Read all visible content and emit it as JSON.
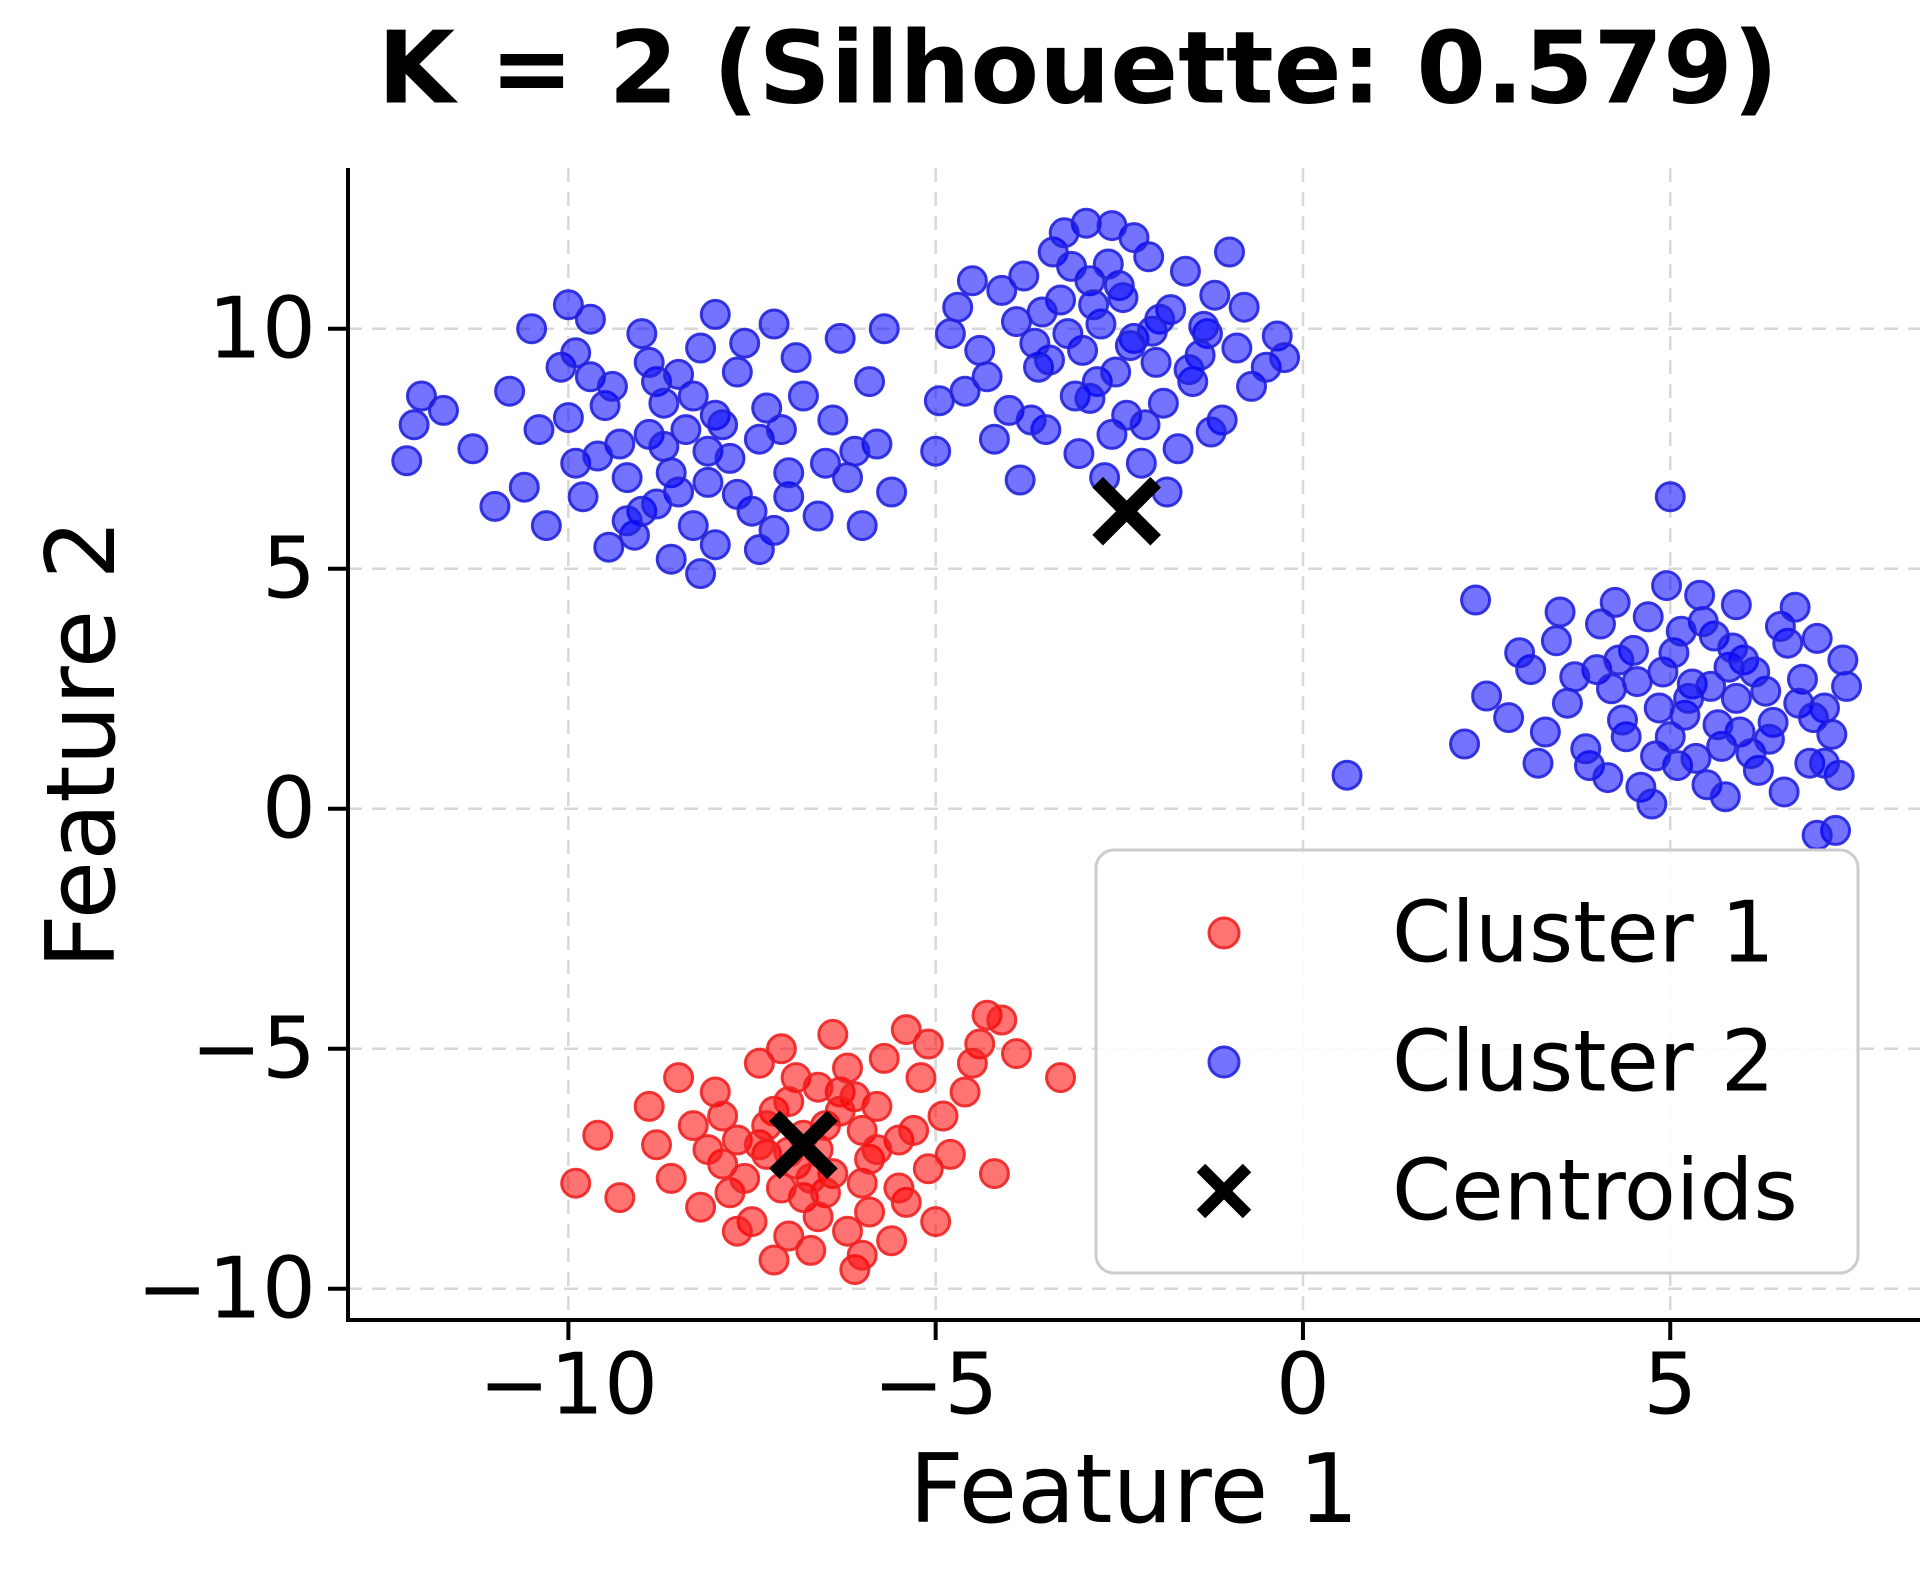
{
  "chart_data": {
    "type": "scatter",
    "title": "K = 2 (Silhouette: 0.579)",
    "k": 2,
    "silhouette": 0.579,
    "xlabel": "Feature 1",
    "ylabel": "Feature 2",
    "xlim": [
      -13.0,
      8.4
    ],
    "ylim": [
      -10.65,
      13.35
    ],
    "xticks": [
      -10,
      -5,
      0,
      5
    ],
    "yticks": [
      10,
      5,
      0,
      -5,
      -10
    ],
    "grid": true,
    "grid_color": "#d8d8d8",
    "background": "#ffffff",
    "legend": {
      "position": "lower right",
      "items": [
        {
          "label": "Cluster 1",
          "marker": "dot",
          "color": "#ff0000"
        },
        {
          "label": "Cluster 2",
          "marker": "dot",
          "color": "#0000ff"
        },
        {
          "label": "Centroids",
          "marker": "x",
          "color": "#000000"
        }
      ]
    },
    "series": [
      {
        "name": "Cluster 1",
        "marker": "dot",
        "color": "#ff0000",
        "edge_color": "#ee2222",
        "alpha": 0.55,
        "points": [
          [
            -6.0,
            -7.8
          ],
          [
            -7.2,
            -6.3
          ],
          [
            -5.5,
            -6.9
          ],
          [
            -6.8,
            -8.1
          ],
          [
            -7.9,
            -7.4
          ],
          [
            -6.3,
            -5.9
          ],
          [
            -5.1,
            -7.5
          ],
          [
            -7.5,
            -8.6
          ],
          [
            -8.3,
            -6.6
          ],
          [
            -6.6,
            -7.1
          ],
          [
            -5.8,
            -6.2
          ],
          [
            -7.1,
            -7.9
          ],
          [
            -6.2,
            -8.8
          ],
          [
            -8.0,
            -5.9
          ],
          [
            -4.9,
            -6.4
          ],
          [
            -6.9,
            -5.6
          ],
          [
            -7.7,
            -6.9
          ],
          [
            -5.4,
            -8.2
          ],
          [
            -6.5,
            -6.6
          ],
          [
            -7.3,
            -7.2
          ],
          [
            -5.9,
            -7.3
          ],
          [
            -6.1,
            -6.0
          ],
          [
            -8.6,
            -7.7
          ],
          [
            -4.6,
            -5.9
          ],
          [
            -6.7,
            -9.2
          ],
          [
            -7.0,
            -6.1
          ],
          [
            -5.2,
            -5.6
          ],
          [
            -7.8,
            -8.0
          ],
          [
            -6.4,
            -7.6
          ],
          [
            -8.9,
            -6.2
          ],
          [
            -5.6,
            -9.0
          ],
          [
            -7.4,
            -5.3
          ],
          [
            -6.0,
            -6.7
          ],
          [
            -6.9,
            -7.4
          ],
          [
            -5.0,
            -8.6
          ],
          [
            -7.6,
            -7.7
          ],
          [
            -8.2,
            -8.3
          ],
          [
            -4.4,
            -4.9
          ],
          [
            -6.3,
            -6.3
          ],
          [
            -7.0,
            -8.9
          ],
          [
            -5.7,
            -5.2
          ],
          [
            -6.6,
            -5.8
          ],
          [
            -8.5,
            -5.6
          ],
          [
            -5.3,
            -6.7
          ],
          [
            -7.2,
            -9.4
          ],
          [
            -6.1,
            -9.6
          ],
          [
            -4.8,
            -7.2
          ],
          [
            -7.9,
            -6.4
          ],
          [
            -6.8,
            -6.8
          ],
          [
            -5.5,
            -7.9
          ],
          [
            -9.3,
            -8.1
          ],
          [
            -6.2,
            -5.4
          ],
          [
            -7.4,
            -7.0
          ],
          [
            -4.3,
            -4.3
          ],
          [
            -8.8,
            -7.0
          ],
          [
            -5.9,
            -8.4
          ],
          [
            -6.5,
            -8.0
          ],
          [
            -7.1,
            -5.0
          ],
          [
            -9.9,
            -7.8
          ],
          [
            -5.1,
            -4.9
          ],
          [
            -6.7,
            -7.7
          ],
          [
            -7.7,
            -8.8
          ],
          [
            -4.5,
            -5.3
          ],
          [
            -6.0,
            -9.3
          ],
          [
            -8.1,
            -7.1
          ],
          [
            -5.4,
            -4.6
          ],
          [
            -7.3,
            -6.6
          ],
          [
            -6.4,
            -4.7
          ],
          [
            -9.6,
            -6.8
          ],
          [
            -5.8,
            -7.1
          ],
          [
            -3.9,
            -5.1
          ],
          [
            -3.3,
            -5.6
          ],
          [
            -4.2,
            -7.6
          ],
          [
            -6.6,
            -8.5
          ],
          [
            -7.0,
            -7.15
          ],
          [
            -4.1,
            -4.4
          ]
        ]
      },
      {
        "name": "Cluster 2",
        "marker": "dot",
        "color": "#0000ff",
        "edge_color": "#2222dd",
        "alpha": 0.55,
        "points": [
          [
            -8.0,
            8.2
          ],
          [
            -9.2,
            6.9
          ],
          [
            -7.4,
            7.7
          ],
          [
            -8.8,
            8.9
          ],
          [
            -9.9,
            7.2
          ],
          [
            -7.0,
            6.5
          ],
          [
            -8.3,
            5.9
          ],
          [
            -9.5,
            8.4
          ],
          [
            -6.8,
            8.6
          ],
          [
            -8.6,
            7.0
          ],
          [
            -7.7,
            9.1
          ],
          [
            -9.0,
            6.2
          ],
          [
            -8.1,
            7.45
          ],
          [
            -10.4,
            7.9
          ],
          [
            -6.5,
            7.2
          ],
          [
            -8.9,
            9.3
          ],
          [
            -7.2,
            5.8
          ],
          [
            -9.7,
            9.0
          ],
          [
            -8.5,
            6.6
          ],
          [
            -7.9,
            8.0
          ],
          [
            -10.8,
            8.7
          ],
          [
            -6.2,
            6.9
          ],
          [
            -8.2,
            9.6
          ],
          [
            -9.3,
            7.6
          ],
          [
            -7.5,
            6.2
          ],
          [
            -8.7,
            8.45
          ],
          [
            -11.3,
            7.5
          ],
          [
            -6.9,
            9.4
          ],
          [
            -9.8,
            6.5
          ],
          [
            -8.0,
            5.5
          ],
          [
            -7.3,
            8.35
          ],
          [
            -10.1,
            9.2
          ],
          [
            -8.4,
            7.9
          ],
          [
            -9.1,
            5.7
          ],
          [
            -6.4,
            8.1
          ],
          [
            -8.8,
            6.35
          ],
          [
            -7.8,
            7.3
          ],
          [
            -10.6,
            6.7
          ],
          [
            -9.4,
            8.8
          ],
          [
            -7.1,
            7.9
          ],
          [
            -8.3,
            8.6
          ],
          [
            -11.7,
            8.3
          ],
          [
            -6.0,
            5.9
          ],
          [
            -9.6,
            7.35
          ],
          [
            -8.6,
            5.2
          ],
          [
            -7.6,
            9.7
          ],
          [
            -10.3,
            5.9
          ],
          [
            -8.1,
            6.8
          ],
          [
            -9.0,
            9.9
          ],
          [
            -5.8,
            7.6
          ],
          [
            -12.0,
            8.6
          ],
          [
            -7.4,
            5.4
          ],
          [
            -8.9,
            7.8
          ],
          [
            -10.0,
            8.15
          ],
          [
            -6.6,
            6.1
          ],
          [
            -9.2,
            6.0
          ],
          [
            -8.5,
            9.05
          ],
          [
            -7.0,
            7.0
          ],
          [
            -11.0,
            6.3
          ],
          [
            -8.2,
            4.9
          ],
          [
            -9.9,
            9.5
          ],
          [
            -5.6,
            6.6
          ],
          [
            -7.7,
            6.55
          ],
          [
            -12.2,
            7.25
          ],
          [
            -8.7,
            7.55
          ],
          [
            -6.3,
            9.8
          ],
          [
            -10.5,
            10.0
          ],
          [
            -9.45,
            5.45
          ],
          [
            -5.9,
            8.9
          ],
          [
            -8.0,
            10.3
          ],
          [
            -10.0,
            10.5
          ],
          [
            -7.2,
            10.1
          ],
          [
            -12.1,
            8.0
          ],
          [
            -6.1,
            7.45
          ],
          [
            -9.7,
            10.2
          ],
          [
            -5.7,
            10.0
          ],
          [
            -2.3,
            9.8
          ],
          [
            -3.1,
            8.6
          ],
          [
            -1.8,
            10.4
          ],
          [
            -2.9,
            11.0
          ],
          [
            -3.6,
            9.2
          ],
          [
            -1.5,
            8.9
          ],
          [
            -2.6,
            7.8
          ],
          [
            -3.3,
            10.6
          ],
          [
            -2.0,
            9.3
          ],
          [
            -4.0,
            8.3
          ],
          [
            -2.75,
            10.1
          ],
          [
            -1.3,
            9.9
          ],
          [
            -3.8,
            11.1
          ],
          [
            -2.4,
            8.2
          ],
          [
            -3.0,
            9.55
          ],
          [
            -1.7,
            7.5
          ],
          [
            -4.3,
            9.0
          ],
          [
            -2.1,
            11.5
          ],
          [
            -3.5,
            7.9
          ],
          [
            -2.8,
            8.9
          ],
          [
            -1.2,
            10.7
          ],
          [
            -3.9,
            10.15
          ],
          [
            -2.5,
            10.9
          ],
          [
            -4.6,
            8.7
          ],
          [
            -1.9,
            8.45
          ],
          [
            -3.2,
            9.9
          ],
          [
            -2.2,
            7.2
          ],
          [
            -4.1,
            10.8
          ],
          [
            -2.95,
            12.2
          ],
          [
            -1.4,
            9.45
          ],
          [
            -3.7,
            8.1
          ],
          [
            -2.55,
            9.1
          ],
          [
            -0.9,
            9.6
          ],
          [
            -4.4,
            9.55
          ],
          [
            -1.95,
            10.2
          ],
          [
            -3.4,
            11.6
          ],
          [
            -2.7,
            6.9
          ],
          [
            -1.1,
            8.1
          ],
          [
            -4.8,
            9.9
          ],
          [
            -2.35,
            9.65
          ],
          [
            -3.05,
            7.4
          ],
          [
            -1.6,
            11.2
          ],
          [
            -4.2,
            7.7
          ],
          [
            -2.85,
            10.5
          ],
          [
            -0.7,
            8.8
          ],
          [
            -3.55,
            10.35
          ],
          [
            -2.15,
            8.0
          ],
          [
            -4.95,
            8.5
          ],
          [
            -1.35,
            10.05
          ],
          [
            -3.25,
            12.0
          ],
          [
            -2.65,
            11.35
          ],
          [
            -0.5,
            9.2
          ],
          [
            -4.5,
            11.0
          ],
          [
            -1.85,
            6.6
          ],
          [
            -3.45,
            9.35
          ],
          [
            -2.45,
            10.65
          ],
          [
            -1.0,
            11.6
          ],
          [
            -3.85,
            6.85
          ],
          [
            -2.05,
            9.95
          ],
          [
            -4.7,
            10.45
          ],
          [
            -0.35,
            9.85
          ],
          [
            -3.15,
            11.3
          ],
          [
            -1.55,
            9.15
          ],
          [
            -2.9,
            8.55
          ],
          [
            -0.8,
            10.45
          ],
          [
            -3.65,
            9.7
          ],
          [
            -2.3,
            11.9
          ],
          [
            -1.25,
            7.85
          ],
          [
            -5.0,
            7.45
          ],
          [
            -2.6,
            12.15
          ],
          [
            -0.25,
            9.4
          ],
          [
            5.3,
            2.6
          ],
          [
            4.4,
            1.5
          ],
          [
            6.0,
            3.1
          ],
          [
            5.1,
            0.9
          ],
          [
            4.0,
            2.9
          ],
          [
            6.4,
            1.8
          ],
          [
            5.6,
            3.6
          ],
          [
            3.6,
            2.2
          ],
          [
            4.8,
            1.1
          ],
          [
            5.9,
            2.3
          ],
          [
            4.5,
            3.3
          ],
          [
            6.8,
            2.7
          ],
          [
            5.2,
            1.95
          ],
          [
            3.3,
            1.6
          ],
          [
            6.2,
            0.8
          ],
          [
            4.2,
            2.5
          ],
          [
            5.7,
            1.3
          ],
          [
            6.6,
            3.45
          ],
          [
            4.9,
            2.85
          ],
          [
            3.9,
            0.9
          ],
          [
            5.45,
            3.9
          ],
          [
            7.1,
            2.1
          ],
          [
            4.6,
            0.45
          ],
          [
            5.95,
            1.6
          ],
          [
            3.1,
            2.9
          ],
          [
            6.3,
            2.45
          ],
          [
            5.05,
            3.25
          ],
          [
            4.35,
            1.85
          ],
          [
            7.35,
            3.1
          ],
          [
            5.5,
            0.5
          ],
          [
            3.45,
            3.5
          ],
          [
            6.1,
            1.15
          ],
          [
            4.7,
            4.0
          ],
          [
            5.8,
            2.95
          ],
          [
            2.8,
            1.9
          ],
          [
            6.9,
            0.95
          ],
          [
            5.25,
            2.3
          ],
          [
            4.05,
            3.85
          ],
          [
            7.2,
            1.55
          ],
          [
            5.65,
            1.75
          ],
          [
            3.7,
            2.75
          ],
          [
            6.5,
            3.8
          ],
          [
            4.85,
            2.1
          ],
          [
            2.5,
            2.35
          ],
          [
            5.35,
            1.05
          ],
          [
            6.75,
            2.2
          ],
          [
            4.15,
            0.65
          ],
          [
            5.9,
            4.25
          ],
          [
            3.2,
            0.95
          ],
          [
            7.0,
            3.55
          ],
          [
            4.55,
            2.65
          ],
          [
            5.15,
            3.7
          ],
          [
            2.95,
            3.25
          ],
          [
            6.35,
            1.45
          ],
          [
            5.75,
            0.25
          ],
          [
            4.3,
            3.1
          ],
          [
            7.3,
            0.7
          ],
          [
            5.0,
            1.5
          ],
          [
            3.85,
            1.25
          ],
          [
            6.15,
            2.85
          ],
          [
            4.75,
            0.1
          ],
          [
            5.4,
            4.45
          ],
          [
            2.2,
            1.35
          ],
          [
            6.55,
            0.35
          ],
          [
            5.85,
            3.35
          ],
          [
            4.25,
            4.3
          ],
          [
            6.95,
            1.9
          ],
          [
            3.5,
            4.1
          ],
          [
            5.55,
            2.55
          ],
          [
            7.4,
            2.55
          ],
          [
            4.95,
            4.65
          ],
          [
            6.7,
            4.2
          ],
          [
            7.25,
            -0.45
          ],
          [
            7.0,
            -0.55
          ],
          [
            0.6,
            0.7
          ],
          [
            5.0,
            6.5
          ],
          [
            7.1,
            0.95
          ],
          [
            2.35,
            4.35
          ]
        ]
      },
      {
        "name": "Centroids",
        "marker": "x",
        "color": "#000000",
        "points": [
          [
            -2.4,
            6.2
          ],
          [
            -6.8,
            -7.0
          ]
        ]
      }
    ]
  }
}
